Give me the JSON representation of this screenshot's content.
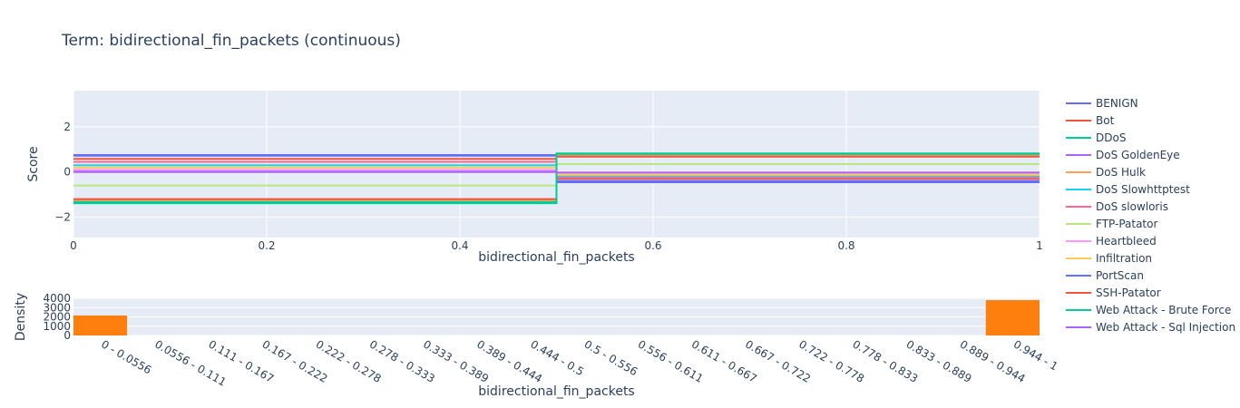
{
  "chart_data": [
    {
      "type": "line",
      "title": "Term: bidirectional_fin_packets (continuous)",
      "xlabel": "bidirectional_fin_packets",
      "ylabel": "Score",
      "xlim": [
        0,
        1
      ],
      "ylim": [
        -2.9,
        3.6
      ],
      "xticks": [
        0,
        0.2,
        0.4,
        0.6,
        0.8,
        1
      ],
      "xtick_labels": [
        "0",
        "0.2",
        "0.4",
        "0.6",
        "0.8",
        "1"
      ],
      "yticks": [
        -2,
        0,
        2
      ],
      "ytick_labels": [
        "−2",
        "0",
        "2"
      ],
      "step_x": [
        0,
        0.5,
        1
      ],
      "series": [
        {
          "name": "BENIGN",
          "color": "#636efa",
          "values": [
            0.72,
            -0.45
          ]
        },
        {
          "name": "Bot",
          "color": "#EF553B",
          "values": [
            0.58,
            -0.3
          ]
        },
        {
          "name": "DDoS",
          "color": "#00cc96",
          "values": [
            -1.38,
            0.78
          ]
        },
        {
          "name": "DoS GoldenEye",
          "color": "#ab63fa",
          "values": [
            0.0,
            -0.05
          ]
        },
        {
          "name": "DoS Hulk",
          "color": "#FFA15A",
          "values": [
            -1.25,
            0.72
          ]
        },
        {
          "name": "DoS Slowhttptest",
          "color": "#19d3f3",
          "values": [
            0.3,
            -0.18
          ]
        },
        {
          "name": "DoS slowloris",
          "color": "#FF6692",
          "values": [
            0.45,
            -0.25
          ]
        },
        {
          "name": "FTP-Patator",
          "color": "#B6E880",
          "values": [
            -0.6,
            0.35
          ]
        },
        {
          "name": "Heartbleed",
          "color": "#FF97FF",
          "values": [
            0.1,
            -0.08
          ]
        },
        {
          "name": "Infiltration",
          "color": "#FECB52",
          "values": [
            0.2,
            -0.12
          ]
        },
        {
          "name": "PortScan",
          "color": "#636efa",
          "values": [
            0.75,
            -0.4
          ]
        },
        {
          "name": "SSH-Patator",
          "color": "#EF553B",
          "values": [
            -1.2,
            0.68
          ]
        },
        {
          "name": "Web Attack - Brute Force",
          "color": "#00cc96",
          "values": [
            -1.33,
            0.82
          ]
        },
        {
          "name": "Web Attack - Sql Injection",
          "color": "#ab63fa",
          "values": [
            0.02,
            -0.02
          ]
        }
      ]
    },
    {
      "type": "bar",
      "xlabel": "bidirectional_fin_packets",
      "ylabel": "Density",
      "ylim": [
        0,
        4000
      ],
      "yticks": [
        0,
        1000,
        2000,
        3000,
        4000
      ],
      "ytick_labels": [
        "0",
        "1000",
        "2000",
        "3000",
        "4000"
      ],
      "color": "#ff7f0e",
      "categories": [
        "0 - 0.0556",
        "0.0556 - 0.111",
        "0.111 - 0.167",
        "0.167 - 0.222",
        "0.222 - 0.278",
        "0.278 - 0.333",
        "0.333 - 0.389",
        "0.389 - 0.444",
        "0.444 - 0.5",
        "0.5 - 0.556",
        "0.556 - 0.611",
        "0.611 - 0.667",
        "0.667 - 0.722",
        "0.722 - 0.778",
        "0.778 - 0.833",
        "0.833 - 0.889",
        "0.889 - 0.944",
        "0.944 - 1"
      ],
      "values": [
        2150,
        0,
        0,
        0,
        0,
        0,
        0,
        0,
        0,
        0,
        0,
        0,
        0,
        0,
        0,
        0,
        0,
        3800
      ]
    }
  ]
}
